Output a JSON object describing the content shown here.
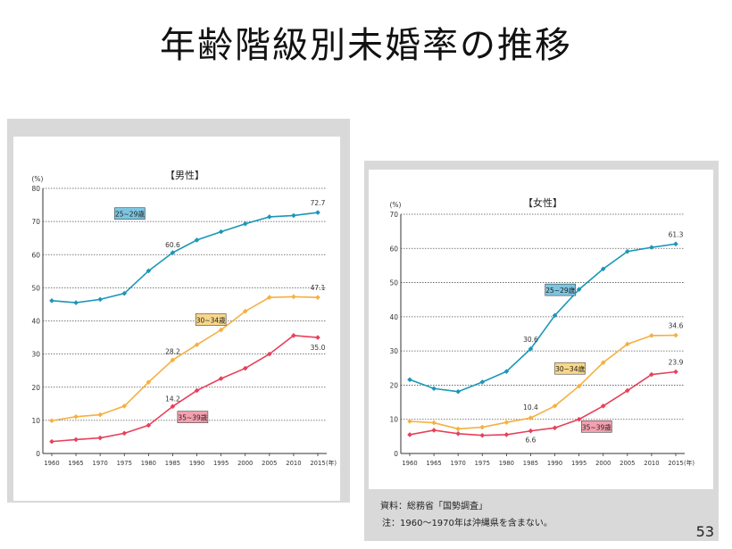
{
  "slide": {
    "title": "年齢階級別未婚率の推移",
    "page_number": "53"
  },
  "notes": {
    "source": "資料：総務省「国勢調査」",
    "note": "注：1960～1970年は沖縄県を含まない。"
  },
  "chart_data": [
    {
      "type": "line",
      "title": "【男性】",
      "unit_label": "(%)",
      "x_unit_label": "(年)",
      "x": [
        1960,
        1965,
        1970,
        1975,
        1980,
        1985,
        1990,
        1995,
        2000,
        2005,
        2010,
        2015
      ],
      "x_tick_labels": [
        "1960",
        "1965",
        "1970",
        "1975",
        "1980",
        "1985",
        "1990",
        "1995",
        "2000",
        "2005",
        "2010",
        "2015"
      ],
      "ylim": [
        0,
        80
      ],
      "yticks": [
        0,
        10,
        20,
        30,
        40,
        50,
        60,
        70,
        80
      ],
      "grid": true,
      "series": [
        {
          "name": "25~29歳",
          "color": "#1a96b8",
          "label_fill": "#7cc5e0",
          "values": [
            46.1,
            45.5,
            46.5,
            48.3,
            55.1,
            60.6,
            64.4,
            66.9,
            69.3,
            71.4,
            71.8,
            72.7
          ],
          "data_labels": [
            {
              "i": 5,
              "text": "60.6"
            },
            {
              "i": 11,
              "text": "72.7"
            }
          ]
        },
        {
          "name": "30~34歳",
          "color": "#f5b041",
          "label_fill": "#f8d78a",
          "values": [
            9.9,
            11.1,
            11.7,
            14.3,
            21.5,
            28.2,
            32.8,
            37.3,
            42.9,
            47.1,
            47.3,
            47.1
          ],
          "data_labels": [
            {
              "i": 5,
              "text": "28.2"
            },
            {
              "i": 11,
              "text": "47.1"
            }
          ]
        },
        {
          "name": "35~39歳",
          "color": "#e8405a",
          "label_fill": "#f4a0b0",
          "values": [
            3.6,
            4.2,
            4.7,
            6.1,
            8.5,
            14.2,
            19.0,
            22.6,
            25.7,
            30.0,
            35.6,
            35.0
          ],
          "data_labels": [
            {
              "i": 5,
              "text": "14.2"
            },
            {
              "i": 11,
              "text": "35.0"
            }
          ]
        }
      ]
    },
    {
      "type": "line",
      "title": "【女性】",
      "unit_label": "(%)",
      "x_unit_label": "(年)",
      "x": [
        1960,
        1965,
        1970,
        1975,
        1980,
        1985,
        1990,
        1995,
        2000,
        2005,
        2010,
        2015
      ],
      "x_tick_labels": [
        "1960",
        "1965",
        "1970",
        "1975",
        "1980",
        "1985",
        "1990",
        "1995",
        "2000",
        "2005",
        "2010",
        "2015"
      ],
      "ylim": [
        0,
        70
      ],
      "yticks": [
        0,
        10,
        20,
        30,
        40,
        50,
        60,
        70
      ],
      "grid": true,
      "series": [
        {
          "name": "25~29歳",
          "color": "#1a96b8",
          "label_fill": "#7cc5e0",
          "values": [
            21.6,
            19.0,
            18.1,
            20.9,
            24.0,
            30.6,
            40.4,
            48.0,
            54.0,
            59.1,
            60.3,
            61.3
          ],
          "data_labels": [
            {
              "i": 5,
              "text": "30.6"
            },
            {
              "i": 11,
              "text": "61.3"
            }
          ]
        },
        {
          "name": "30~34歳",
          "color": "#f5b041",
          "label_fill": "#f8d78a",
          "values": [
            9.4,
            9.0,
            7.2,
            7.7,
            9.1,
            10.4,
            13.9,
            19.7,
            26.6,
            32.0,
            34.5,
            34.6
          ],
          "data_labels": [
            {
              "i": 5,
              "text": "10.4"
            },
            {
              "i": 11,
              "text": "34.6"
            }
          ]
        },
        {
          "name": "35~39歳",
          "color": "#e8405a",
          "label_fill": "#f4a0b0",
          "values": [
            5.5,
            6.8,
            5.8,
            5.3,
            5.5,
            6.6,
            7.5,
            10.0,
            13.9,
            18.4,
            23.1,
            23.9
          ],
          "data_labels": [
            {
              "i": 5,
              "text": "6.6"
            },
            {
              "i": 11,
              "text": "23.9"
            }
          ]
        }
      ]
    }
  ]
}
